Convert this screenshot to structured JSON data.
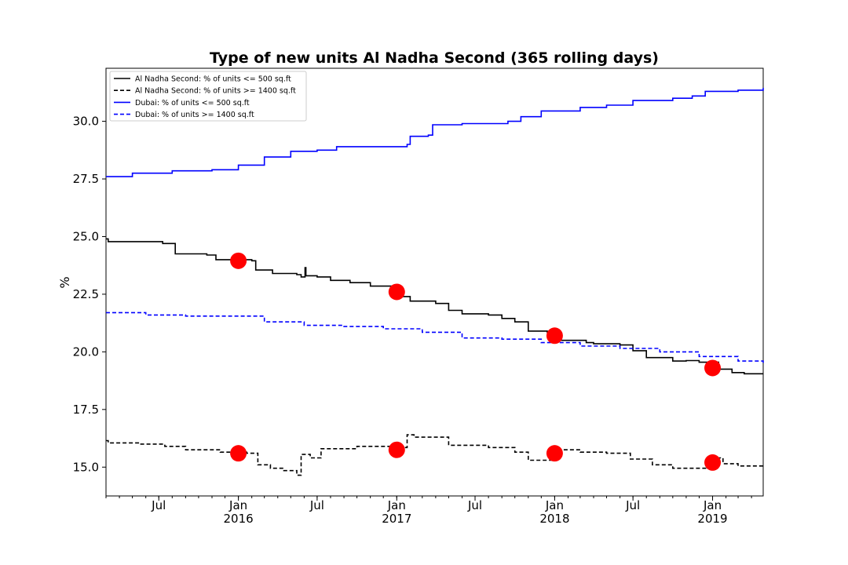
{
  "chart_data": {
    "type": "line",
    "title": "Type of new units Al Nadha Second (365 rolling days)",
    "xlabel": "",
    "ylabel": "%",
    "x_range": [
      "2015-03-01",
      "2019-04-28"
    ],
    "ylim": [
      13.75,
      32.3
    ],
    "y_ticks": [
      15.0,
      17.5,
      20.0,
      22.5,
      25.0,
      27.5,
      30.0
    ],
    "y_tick_labels": [
      "15.0",
      "17.5",
      "20.0",
      "22.5",
      "25.0",
      "27.5",
      "30.0"
    ],
    "x_ticks": [
      {
        "date": "2015-07-01",
        "label": "Jul",
        "year": ""
      },
      {
        "date": "2016-01-01",
        "label": "Jan",
        "year": "2016"
      },
      {
        "date": "2016-07-01",
        "label": "Jul",
        "year": ""
      },
      {
        "date": "2017-01-01",
        "label": "Jan",
        "year": "2017"
      },
      {
        "date": "2017-07-01",
        "label": "Jul",
        "year": ""
      },
      {
        "date": "2018-01-01",
        "label": "Jan",
        "year": "2018"
      },
      {
        "date": "2018-07-01",
        "label": "Jul",
        "year": ""
      },
      {
        "date": "2019-01-01",
        "label": "Jan",
        "year": "2019"
      }
    ],
    "legend_position": "top-left",
    "grid": false,
    "series": [
      {
        "name": "Al Nadha Second: % of units <= 500 sq.ft",
        "color": "#000000",
        "style": "solid",
        "points": [
          [
            "2015-03-01",
            24.9
          ],
          [
            "2015-03-06",
            24.78
          ],
          [
            "2015-07-10",
            24.7
          ],
          [
            "2015-08-03",
            24.7
          ],
          [
            "2015-08-08",
            24.25
          ],
          [
            "2015-10-20",
            24.2
          ],
          [
            "2015-11-10",
            24.0
          ],
          [
            "2016-02-01",
            23.95
          ],
          [
            "2016-02-10",
            23.55
          ],
          [
            "2016-03-05",
            23.55
          ],
          [
            "2016-03-20",
            23.4
          ],
          [
            "2016-05-15",
            23.35
          ],
          [
            "2016-05-25",
            23.25
          ],
          [
            "2016-06-03",
            23.65
          ],
          [
            "2016-06-05",
            23.3
          ],
          [
            "2016-07-01",
            23.25
          ],
          [
            "2016-08-01",
            23.1
          ],
          [
            "2016-09-15",
            23.0
          ],
          [
            "2016-11-01",
            22.85
          ],
          [
            "2016-12-25",
            22.7
          ],
          [
            "2017-01-10",
            22.4
          ],
          [
            "2017-02-01",
            22.2
          ],
          [
            "2017-04-01",
            22.1
          ],
          [
            "2017-05-01",
            21.8
          ],
          [
            "2017-06-01",
            21.65
          ],
          [
            "2017-08-01",
            21.6
          ],
          [
            "2017-09-01",
            21.45
          ],
          [
            "2017-10-01",
            21.3
          ],
          [
            "2017-11-01",
            20.9
          ],
          [
            "2017-12-15",
            20.85
          ],
          [
            "2018-01-15",
            20.5
          ],
          [
            "2018-03-15",
            20.4
          ],
          [
            "2018-04-01",
            20.35
          ],
          [
            "2018-06-01",
            20.3
          ],
          [
            "2018-07-01",
            20.05
          ],
          [
            "2018-08-01",
            19.75
          ],
          [
            "2018-10-01",
            19.6
          ],
          [
            "2018-11-01",
            19.62
          ],
          [
            "2018-12-01",
            19.55
          ],
          [
            "2019-01-15",
            19.25
          ],
          [
            "2019-02-15",
            19.1
          ],
          [
            "2019-03-15",
            19.05
          ],
          [
            "2019-04-28",
            19.05
          ]
        ]
      },
      {
        "name": "Al Nadha Second: % of units >= 1400 sq.ft",
        "color": "#000000",
        "style": "dashed",
        "points": [
          [
            "2015-03-01",
            16.15
          ],
          [
            "2015-03-06",
            16.05
          ],
          [
            "2015-05-15",
            16.0
          ],
          [
            "2015-07-15",
            15.9
          ],
          [
            "2015-09-01",
            15.75
          ],
          [
            "2015-11-20",
            15.65
          ],
          [
            "2016-01-20",
            15.6
          ],
          [
            "2016-02-15",
            15.1
          ],
          [
            "2016-03-15",
            14.95
          ],
          [
            "2016-04-15",
            14.85
          ],
          [
            "2016-05-15",
            14.65
          ],
          [
            "2016-05-25",
            15.55
          ],
          [
            "2016-06-15",
            15.4
          ],
          [
            "2016-07-10",
            15.8
          ],
          [
            "2016-10-01",
            15.9
          ],
          [
            "2017-01-10",
            15.85
          ],
          [
            "2017-01-25",
            16.4
          ],
          [
            "2017-02-10",
            16.3
          ],
          [
            "2017-05-01",
            15.95
          ],
          [
            "2017-08-01",
            15.85
          ],
          [
            "2017-10-01",
            15.65
          ],
          [
            "2017-11-01",
            15.3
          ],
          [
            "2017-12-25",
            15.75
          ],
          [
            "2018-03-01",
            15.65
          ],
          [
            "2018-05-01",
            15.6
          ],
          [
            "2018-06-25",
            15.35
          ],
          [
            "2018-08-15",
            15.1
          ],
          [
            "2018-10-01",
            14.95
          ],
          [
            "2018-12-25",
            15.4
          ],
          [
            "2019-01-25",
            15.15
          ],
          [
            "2019-03-01",
            15.05
          ],
          [
            "2019-04-28",
            15.05
          ]
        ]
      },
      {
        "name": "Dubai: % of units <= 500 sq.ft",
        "color": "#0000ff",
        "style": "solid",
        "points": [
          [
            "2015-03-01",
            27.6
          ],
          [
            "2015-05-01",
            27.75
          ],
          [
            "2015-08-01",
            27.85
          ],
          [
            "2015-11-01",
            27.9
          ],
          [
            "2016-01-01",
            28.1
          ],
          [
            "2016-03-01",
            28.45
          ],
          [
            "2016-05-01",
            28.7
          ],
          [
            "2016-07-01",
            28.75
          ],
          [
            "2016-08-15",
            28.9
          ],
          [
            "2016-10-01",
            28.9
          ],
          [
            "2017-01-25",
            29.0
          ],
          [
            "2017-02-01",
            29.35
          ],
          [
            "2017-03-15",
            29.4
          ],
          [
            "2017-03-25",
            29.85
          ],
          [
            "2017-06-01",
            29.9
          ],
          [
            "2017-09-15",
            30.0
          ],
          [
            "2017-10-15",
            30.2
          ],
          [
            "2017-12-01",
            30.45
          ],
          [
            "2018-03-01",
            30.6
          ],
          [
            "2018-05-01",
            30.7
          ],
          [
            "2018-07-01",
            30.9
          ],
          [
            "2018-10-01",
            31.0
          ],
          [
            "2018-11-15",
            31.1
          ],
          [
            "2018-12-15",
            31.3
          ],
          [
            "2019-03-01",
            31.35
          ],
          [
            "2019-04-28",
            31.45
          ]
        ]
      },
      {
        "name": "Dubai: % of units >= 1400 sq.ft",
        "color": "#0000ff",
        "style": "dashed",
        "points": [
          [
            "2015-03-01",
            21.7
          ],
          [
            "2015-06-01",
            21.6
          ],
          [
            "2015-09-01",
            21.55
          ],
          [
            "2015-12-01",
            21.55
          ],
          [
            "2016-03-01",
            21.3
          ],
          [
            "2016-06-01",
            21.15
          ],
          [
            "2016-09-01",
            21.1
          ],
          [
            "2016-12-01",
            21.0
          ],
          [
            "2017-03-01",
            20.85
          ],
          [
            "2017-06-01",
            20.6
          ],
          [
            "2017-09-01",
            20.55
          ],
          [
            "2017-12-01",
            20.4
          ],
          [
            "2018-03-01",
            20.25
          ],
          [
            "2018-06-01",
            20.15
          ],
          [
            "2018-09-01",
            20.0
          ],
          [
            "2018-12-01",
            19.8
          ],
          [
            "2019-03-01",
            19.6
          ],
          [
            "2019-04-28",
            19.5
          ]
        ]
      }
    ],
    "markers": {
      "color": "#ff0000",
      "points": [
        [
          "2016-01-01",
          23.95
        ],
        [
          "2016-01-01",
          15.6
        ],
        [
          "2017-01-01",
          22.6
        ],
        [
          "2017-01-01",
          15.75
        ],
        [
          "2018-01-01",
          20.7
        ],
        [
          "2018-01-01",
          15.6
        ],
        [
          "2019-01-01",
          19.3
        ],
        [
          "2019-01-01",
          15.2
        ]
      ]
    }
  }
}
